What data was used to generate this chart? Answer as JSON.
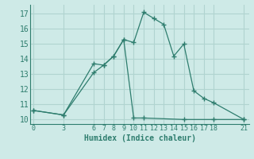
{
  "line1_x": [
    0,
    3,
    6,
    7,
    8,
    9,
    10,
    11,
    12,
    13,
    14,
    15,
    16,
    17,
    18,
    21
  ],
  "line1_y": [
    10.6,
    10.3,
    13.7,
    13.6,
    14.2,
    15.3,
    15.1,
    17.1,
    16.7,
    16.3,
    14.2,
    15.0,
    11.9,
    11.4,
    11.1,
    10.0
  ],
  "line2_x": [
    0,
    3,
    6,
    7,
    8,
    9,
    10,
    11,
    15,
    18,
    21
  ],
  "line2_y": [
    10.6,
    10.3,
    13.1,
    13.6,
    14.2,
    15.3,
    10.1,
    10.1,
    10.0,
    10.0,
    10.0
  ],
  "xlabel": "Humidex (Indice chaleur)",
  "xticks": [
    0,
    3,
    6,
    7,
    8,
    9,
    10,
    11,
    12,
    13,
    14,
    15,
    16,
    17,
    18,
    21
  ],
  "yticks": [
    10,
    11,
    12,
    13,
    14,
    15,
    16,
    17
  ],
  "xlim": [
    -0.3,
    21.5
  ],
  "ylim": [
    9.7,
    17.6
  ],
  "line_color": "#2e7d6e",
  "bg_color": "#ceeae7",
  "grid_color": "#b0d4d0"
}
